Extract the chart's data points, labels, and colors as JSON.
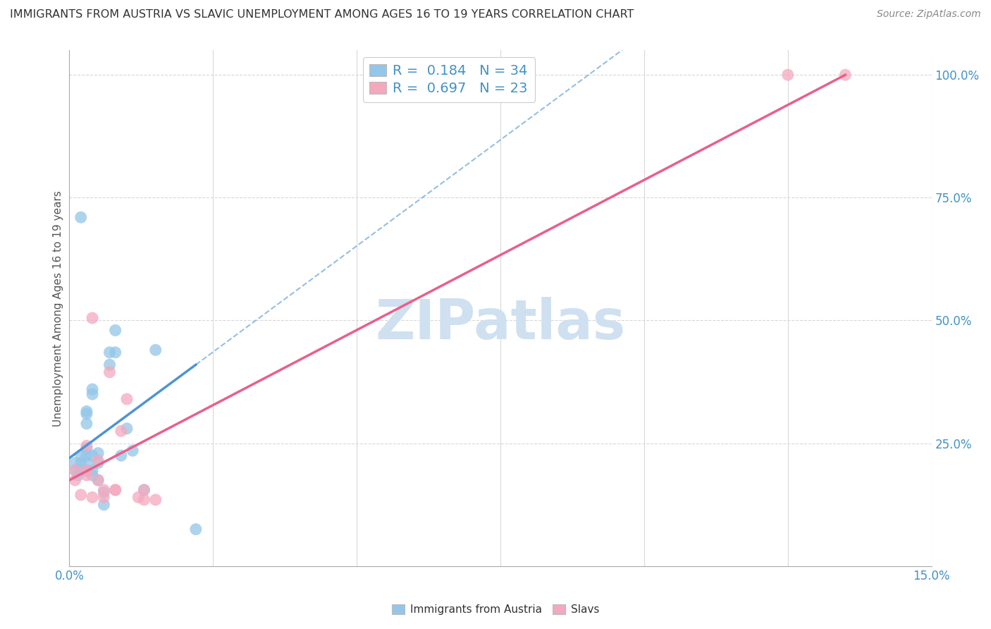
{
  "title": "IMMIGRANTS FROM AUSTRIA VS SLAVIC UNEMPLOYMENT AMONG AGES 16 TO 19 YEARS CORRELATION CHART",
  "source": "Source: ZipAtlas.com",
  "ylabel": "Unemployment Among Ages 16 to 19 years",
  "xlim": [
    0.0,
    0.15
  ],
  "ylim": [
    0.0,
    1.05
  ],
  "xticks": [
    0.0,
    0.025,
    0.05,
    0.075,
    0.1,
    0.125,
    0.15
  ],
  "xticklabels": [
    "0.0%",
    "",
    "",
    "",
    "",
    "",
    "15.0%"
  ],
  "yticks_right": [
    0.0,
    0.25,
    0.5,
    0.75,
    1.0
  ],
  "yticklabels_right": [
    "",
    "25.0%",
    "50.0%",
    "75.0%",
    "100.0%"
  ],
  "blue_color": "#93c6e8",
  "pink_color": "#f4a8be",
  "blue_line_color": "#4d94d4",
  "pink_line_color": "#e8608a",
  "legend_r_blue": "R =  0.184",
  "legend_n_blue": "N = 34",
  "legend_r_pink": "R =  0.697",
  "legend_n_pink": "N = 23",
  "blue_scatter_x": [
    0.001,
    0.001,
    0.0015,
    0.002,
    0.002,
    0.002,
    0.002,
    0.003,
    0.003,
    0.003,
    0.003,
    0.003,
    0.003,
    0.003,
    0.004,
    0.004,
    0.004,
    0.004,
    0.004,
    0.005,
    0.005,
    0.005,
    0.006,
    0.006,
    0.007,
    0.007,
    0.008,
    0.008,
    0.009,
    0.01,
    0.011,
    0.013,
    0.015,
    0.022
  ],
  "blue_scatter_y": [
    0.195,
    0.21,
    0.185,
    0.195,
    0.21,
    0.225,
    0.71,
    0.195,
    0.21,
    0.225,
    0.24,
    0.29,
    0.31,
    0.315,
    0.185,
    0.195,
    0.225,
    0.35,
    0.36,
    0.175,
    0.21,
    0.23,
    0.125,
    0.15,
    0.41,
    0.435,
    0.435,
    0.48,
    0.225,
    0.28,
    0.235,
    0.155,
    0.44,
    0.075
  ],
  "pink_scatter_x": [
    0.001,
    0.001,
    0.002,
    0.003,
    0.003,
    0.003,
    0.004,
    0.004,
    0.005,
    0.005,
    0.006,
    0.006,
    0.007,
    0.008,
    0.008,
    0.009,
    0.01,
    0.012,
    0.013,
    0.015,
    0.013,
    0.125,
    0.135
  ],
  "pink_scatter_y": [
    0.175,
    0.195,
    0.145,
    0.185,
    0.195,
    0.245,
    0.14,
    0.505,
    0.175,
    0.215,
    0.14,
    0.155,
    0.395,
    0.155,
    0.155,
    0.275,
    0.34,
    0.14,
    0.155,
    0.135,
    0.135,
    1.0,
    1.0
  ],
  "blue_line_x0": 0.0,
  "blue_line_x1": 0.022,
  "blue_line_y0": 0.22,
  "blue_line_y1": 0.41,
  "pink_line_x0": 0.0,
  "pink_line_x1": 0.135,
  "pink_line_y0": 0.175,
  "pink_line_y1": 1.0,
  "watermark": "ZIPatlas",
  "watermark_color": "#cfe0f0",
  "background_color": "#ffffff",
  "grid_color": "#d8d8d8"
}
